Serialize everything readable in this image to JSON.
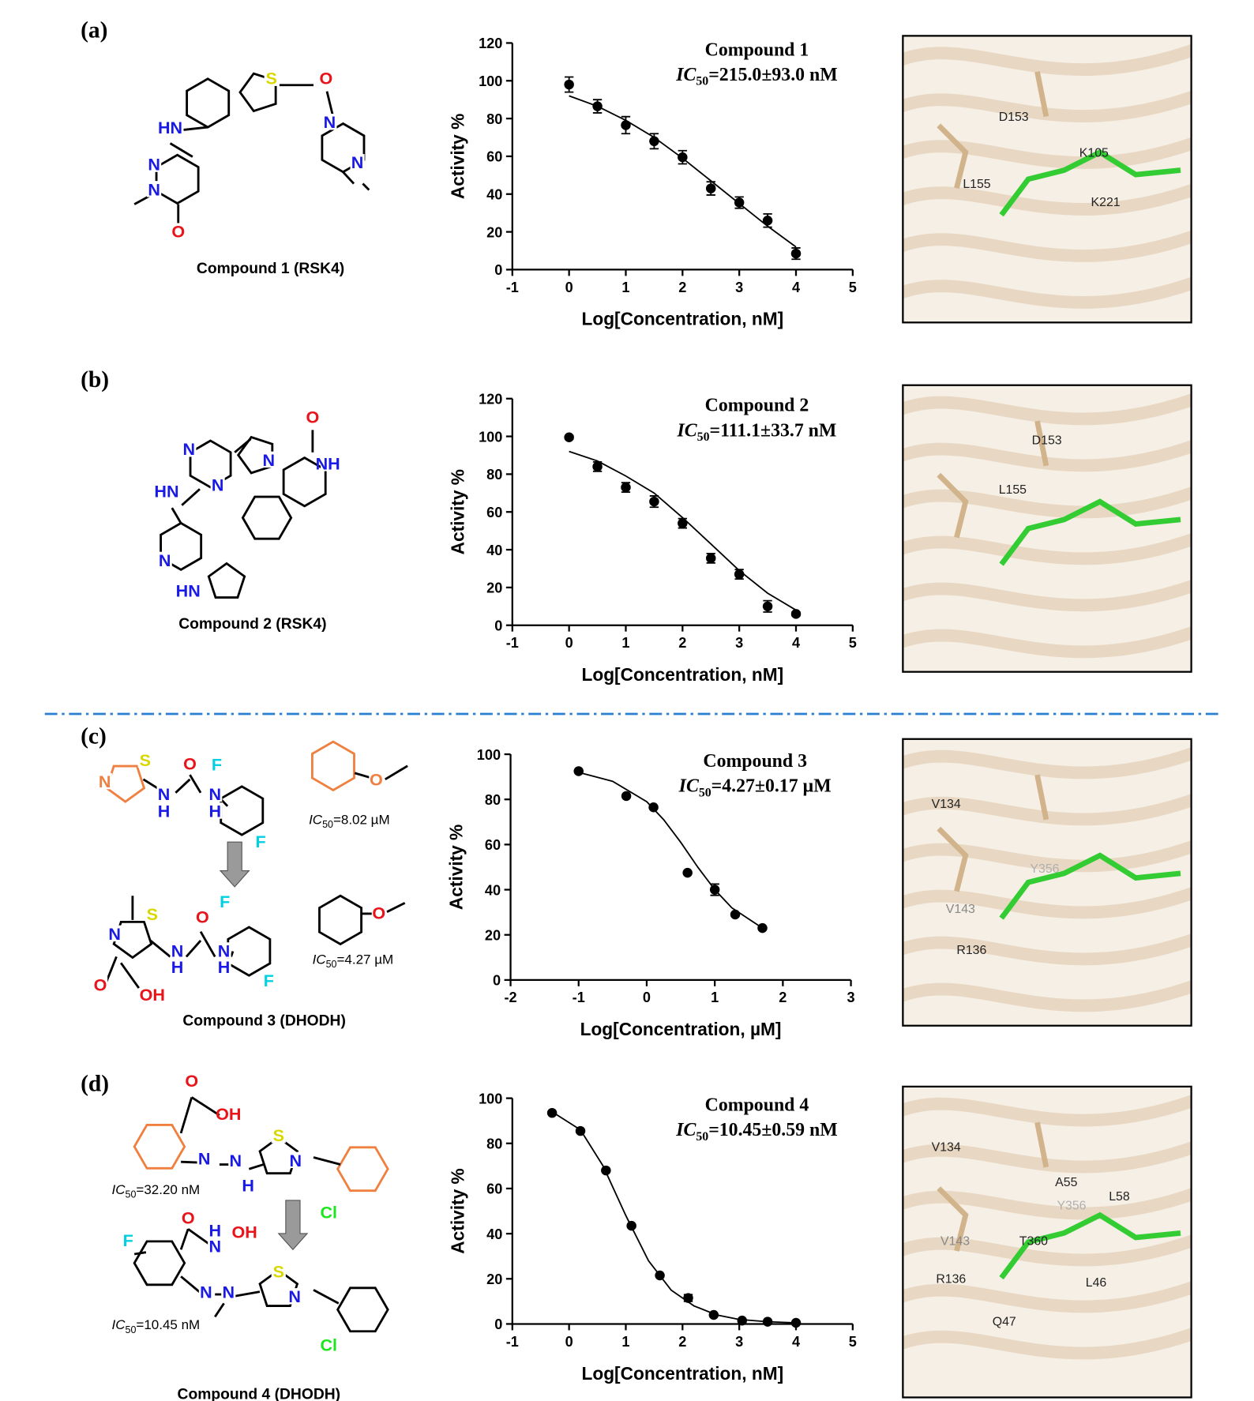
{
  "panels": [
    {
      "label": "(a)",
      "structure": {
        "caption": "Compound 1 (RSK4)",
        "atoms": [
          {
            "text": "S",
            "color": "#d8d800"
          },
          {
            "text": "O",
            "color": "#e8141a"
          },
          {
            "text": "HN",
            "color": "#1a1ae6"
          },
          {
            "text": "N",
            "color": "#1a1ae6"
          },
          {
            "text": "N",
            "color": "#1a1ae6"
          },
          {
            "text": "N",
            "color": "#1a1ae6"
          },
          {
            "text": "N",
            "color": "#1a1ae6"
          },
          {
            "text": "O",
            "color": "#e8141a"
          }
        ],
        "notes": []
      },
      "docking": {
        "residues": [
          {
            "text": "D153",
            "color": "#222222"
          },
          {
            "text": "K105",
            "color": "#222222"
          },
          {
            "text": "L155",
            "color": "#222222"
          },
          {
            "text": "K221",
            "color": "#222222"
          }
        ]
      }
    },
    {
      "label": "(b)",
      "structure": {
        "caption": "Compound 2 (RSK4)",
        "atoms": [
          {
            "text": "O",
            "color": "#e8141a"
          },
          {
            "text": "N",
            "color": "#1a1ae6"
          },
          {
            "text": "N",
            "color": "#1a1ae6"
          },
          {
            "text": "NH",
            "color": "#1a1ae6"
          },
          {
            "text": "N",
            "color": "#1a1ae6"
          },
          {
            "text": "HN",
            "color": "#1a1ae6"
          },
          {
            "text": "N",
            "color": "#1a1ae6"
          },
          {
            "text": "HN",
            "color": "#1a1ae6"
          }
        ],
        "notes": []
      },
      "docking": {
        "residues": [
          {
            "text": "D153",
            "color": "#222222"
          },
          {
            "text": "L155",
            "color": "#222222"
          }
        ]
      }
    },
    {
      "label": "(c)",
      "structure": {
        "caption": "Compound 3 (DHODH)",
        "atoms": [
          {
            "text": "S",
            "color": "#d8d800"
          },
          {
            "text": "F",
            "color": "#00d0e0"
          },
          {
            "text": "O",
            "color": "#e8141a"
          },
          {
            "text": "O",
            "color": "#f08040"
          },
          {
            "text": "N",
            "color": "#f08040"
          },
          {
            "text": "N",
            "color": "#1a1ae6"
          },
          {
            "text": "H",
            "color": "#1a1ae6"
          },
          {
            "text": "N",
            "color": "#1a1ae6"
          },
          {
            "text": "H",
            "color": "#1a1ae6"
          },
          {
            "text": "F",
            "color": "#00d0e0"
          },
          {
            "text": "S",
            "color": "#d8d800"
          },
          {
            "text": "F",
            "color": "#00d0e0"
          },
          {
            "text": "O",
            "color": "#e8141a"
          },
          {
            "text": "O",
            "color": "#e8141a"
          },
          {
            "text": "N",
            "color": "#1a1ae6"
          },
          {
            "text": "N",
            "color": "#1a1ae6"
          },
          {
            "text": "H",
            "color": "#1a1ae6"
          },
          {
            "text": "N",
            "color": "#1a1ae6"
          },
          {
            "text": "H",
            "color": "#1a1ae6"
          },
          {
            "text": "F",
            "color": "#00d0e0"
          },
          {
            "text": "O",
            "color": "#e8141a"
          },
          {
            "text": "OH",
            "color": "#e8141a"
          }
        ],
        "notes": [
          [
            "IC",
            "50",
            "=8.02 µM"
          ],
          [
            "IC",
            "50",
            "=4.27 µM"
          ]
        ]
      },
      "docking": {
        "residues": [
          {
            "text": "V134",
            "color": "#222222"
          },
          {
            "text": "Y356",
            "color": "#b0b0b0"
          },
          {
            "text": "V143",
            "color": "#888888"
          },
          {
            "text": "R136",
            "color": "#222222"
          }
        ]
      }
    },
    {
      "label": "(d)",
      "structure": {
        "caption": "Compound 4 (DHODH)",
        "atoms": [
          {
            "text": "O",
            "color": "#e8141a"
          },
          {
            "text": "OH",
            "color": "#e8141a"
          },
          {
            "text": "S",
            "color": "#d8d800"
          },
          {
            "text": "N",
            "color": "#1a1ae6"
          },
          {
            "text": "N",
            "color": "#1a1ae6"
          },
          {
            "text": "H",
            "color": "#1a1ae6"
          },
          {
            "text": "N",
            "color": "#1a1ae6"
          },
          {
            "text": "Cl",
            "color": "#1ee61e"
          },
          {
            "text": "O",
            "color": "#e8141a"
          },
          {
            "text": "H",
            "color": "#1a1ae6"
          },
          {
            "text": "N",
            "color": "#1a1ae6"
          },
          {
            "text": "OH",
            "color": "#e8141a"
          },
          {
            "text": "F",
            "color": "#00d0e0"
          },
          {
            "text": "N",
            "color": "#1a1ae6"
          },
          {
            "text": "N",
            "color": "#1a1ae6"
          },
          {
            "text": "S",
            "color": "#d8d800"
          },
          {
            "text": "N",
            "color": "#1a1ae6"
          },
          {
            "text": "Cl",
            "color": "#1ee61e"
          }
        ],
        "notes": [
          [
            "IC",
            "50",
            "=32.20 nM"
          ],
          [
            "IC",
            "50",
            "=10.45 nM"
          ]
        ]
      },
      "docking": {
        "residues": [
          {
            "text": "V134",
            "color": "#222222"
          },
          {
            "text": "A55",
            "color": "#222222"
          },
          {
            "text": "L58",
            "color": "#222222"
          },
          {
            "text": "Y356",
            "color": "#b0b0b0"
          },
          {
            "text": "V143",
            "color": "#888888"
          },
          {
            "text": "T360",
            "color": "#222222"
          },
          {
            "text": "R136",
            "color": "#222222"
          },
          {
            "text": "L46",
            "color": "#222222"
          },
          {
            "text": "Q47",
            "color": "#222222"
          }
        ]
      }
    }
  ],
  "chart_data": [
    {
      "type": "scatter",
      "title": "Compound 1",
      "annotation": [
        "IC",
        "50",
        "=215.0±93.0 nM"
      ],
      "x_label": "Log[Concentration, nM]",
      "y_label": "Activity %",
      "xlim": [
        -1,
        5
      ],
      "xticks": [
        -1,
        0,
        1,
        2,
        3,
        4,
        5
      ],
      "ylim": [
        0,
        120
      ],
      "yticks": [
        0,
        20,
        40,
        60,
        80,
        100,
        120
      ],
      "series": [
        {
          "color": "#000000",
          "x": [
            0,
            0.5,
            1,
            1.5,
            2,
            2.5,
            3,
            3.5,
            4
          ],
          "values": [
            98,
            86.5,
            76.5,
            68,
            59.5,
            43,
            35.5,
            26,
            8.5
          ],
          "errors": [
            4,
            3.5,
            4.5,
            4,
            3.5,
            3.5,
            3,
            3.5,
            3
          ]
        }
      ],
      "fit": {
        "color": "#000000",
        "x": [
          0,
          0.5,
          1,
          1.5,
          2,
          2.5,
          3,
          3.5,
          4
        ],
        "values": [
          92,
          86.5,
          79,
          70,
          59,
          47,
          35,
          23,
          12
        ]
      }
    },
    {
      "type": "scatter",
      "title": "Compound 2",
      "annotation": [
        "IC",
        "50",
        "=111.1±33.7 nM"
      ],
      "x_label": "Log[Concentration, nM]",
      "y_label": "Activity %",
      "xlim": [
        -1,
        5
      ],
      "xticks": [
        -1,
        0,
        1,
        2,
        3,
        4,
        5
      ],
      "ylim": [
        0,
        120
      ],
      "yticks": [
        0,
        20,
        40,
        60,
        80,
        100,
        120
      ],
      "series": [
        {
          "color": "#000000",
          "x": [
            0,
            0.5,
            1,
            1.5,
            2,
            2.5,
            3,
            3.5,
            4
          ],
          "values": [
            99.5,
            84,
            73,
            65.5,
            54,
            35.5,
            27,
            10,
            6
          ],
          "errors": [
            1,
            2.5,
            2.5,
            3,
            2.5,
            2.5,
            2.5,
            3,
            1
          ]
        }
      ],
      "fit": {
        "color": "#000000",
        "x": [
          0,
          0.5,
          1,
          1.5,
          2,
          2.5,
          3,
          3.5,
          4
        ],
        "values": [
          92,
          87,
          79,
          70,
          57,
          43,
          29,
          17,
          8
        ]
      }
    },
    {
      "type": "scatter",
      "title": "Compound 3",
      "annotation": [
        "IC",
        "50",
        "=4.27±0.17 µM"
      ],
      "x_label": "Log[Concentration, µM]",
      "y_label": "Activity %",
      "xlim": [
        -2,
        3
      ],
      "xticks": [
        -2,
        -1,
        0,
        1,
        2,
        3
      ],
      "ylim": [
        0,
        100
      ],
      "yticks": [
        0,
        20,
        40,
        60,
        80,
        100
      ],
      "series": [
        {
          "color": "#000000",
          "x": [
            -1,
            -0.3,
            0.1,
            0.6,
            1,
            1.3,
            1.7
          ],
          "values": [
            92.5,
            81.5,
            76.5,
            47.5,
            40,
            29,
            23
          ],
          "errors": [
            null,
            null,
            null,
            null,
            2.5,
            null,
            null
          ]
        }
      ],
      "fit": {
        "color": "#000000",
        "x": [
          -1,
          -0.5,
          0,
          0.25,
          0.5,
          0.75,
          1,
          1.25,
          1.5,
          1.7
        ],
        "values": [
          92,
          88,
          79,
          71,
          61,
          50,
          40,
          32,
          27,
          23
        ]
      }
    },
    {
      "type": "scatter",
      "title": "Compound 4",
      "annotation": [
        "IC",
        "50",
        "=10.45±0.59 nM"
      ],
      "x_label": "Log[Concentration, nM]",
      "y_label": "Activity %",
      "xlim": [
        -1,
        5
      ],
      "xticks": [
        -1,
        0,
        1,
        2,
        3,
        4,
        5
      ],
      "ylim": [
        0,
        100
      ],
      "yticks": [
        0,
        20,
        40,
        60,
        80,
        100
      ],
      "series": [
        {
          "color": "#000000",
          "x": [
            -0.3,
            0.2,
            0.65,
            1.1,
            1.6,
            2.1,
            2.55,
            3.05,
            3.5,
            4
          ],
          "values": [
            93.5,
            85.5,
            68,
            43.5,
            21.5,
            11.5,
            4,
            1.5,
            1,
            0.5
          ],
          "errors": [
            null,
            null,
            null,
            null,
            null,
            1.5,
            null,
            null,
            null,
            null
          ]
        }
      ],
      "fit": {
        "color": "#000000",
        "x": [
          -0.3,
          0.2,
          0.6,
          1,
          1.4,
          1.8,
          2.2,
          2.6,
          3,
          3.5,
          4
        ],
        "values": [
          94,
          86,
          70,
          48,
          28,
          15,
          8,
          4,
          2,
          1,
          0.5
        ]
      }
    }
  ]
}
